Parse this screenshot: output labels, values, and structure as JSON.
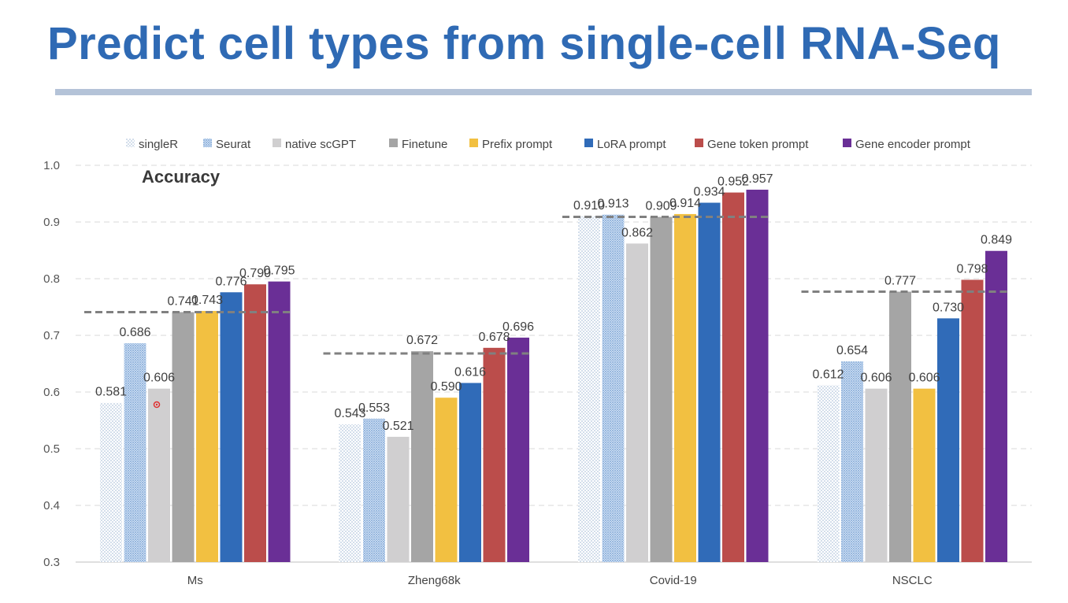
{
  "slide": {
    "title": "Predict cell types from single-cell RNA-Seq"
  },
  "chart_data": {
    "type": "bar",
    "annotation": "Accuracy",
    "categories": [
      "Ms",
      "Zheng68k",
      "Covid-19",
      "NSCLC"
    ],
    "ylim": [
      0.3,
      1.0
    ],
    "yticks": [
      "0.3",
      "0.4",
      "0.5",
      "0.6",
      "0.7",
      "0.8",
      "0.9",
      "1.0"
    ],
    "grid": true,
    "legend_position": "top",
    "series": [
      {
        "name": "singleR",
        "color": "#d6e2ef",
        "pattern": "sparse-dots",
        "values": [
          0.581,
          0.543,
          0.91,
          0.612
        ],
        "labels": [
          "0.581",
          "0.543",
          "0.910",
          "0.612"
        ]
      },
      {
        "name": "Seurat",
        "color": "#9dbde3",
        "pattern": "dense-dots",
        "values": [
          0.686,
          0.553,
          0.913,
          0.654
        ],
        "labels": [
          "0.686",
          "0.553",
          "0.913",
          "0.654"
        ]
      },
      {
        "name": "native scGPT",
        "color": "#d0cfd0",
        "values": [
          0.606,
          0.521,
          0.862,
          0.606
        ],
        "labels": [
          "0.606",
          "0.521",
          "0.862",
          "0.606"
        ]
      },
      {
        "name": "Finetune",
        "color": "#a5a5a5",
        "values": [
          0.741,
          0.672,
          0.909,
          0.777
        ],
        "labels": [
          "0.741",
          "0.672",
          "0.909",
          "0.777"
        ]
      },
      {
        "name": "Prefix prompt",
        "color": "#f2c041",
        "values": [
          0.743,
          0.59,
          0.914,
          0.606
        ],
        "labels": [
          "0.743",
          "0.590",
          "0.914",
          "0.606"
        ]
      },
      {
        "name": "LoRA prompt",
        "color": "#306bb8",
        "values": [
          0.776,
          0.616,
          0.934,
          0.73
        ],
        "labels": [
          "0.776",
          "0.616",
          "0.934",
          "0.730"
        ]
      },
      {
        "name": "Gene token prompt",
        "color": "#bb4d4b",
        "values": [
          0.79,
          0.678,
          0.952,
          0.798
        ],
        "labels": [
          "0.790",
          "0.678",
          "0.952",
          "0.798"
        ]
      },
      {
        "name": "Gene encoder prompt",
        "color": "#6a2f96",
        "values": [
          0.795,
          0.696,
          0.957,
          0.849
        ],
        "labels": [
          "0.795",
          "0.696",
          "0.957",
          "0.849"
        ]
      }
    ],
    "reference_lines": [
      {
        "category": "Ms",
        "value": 0.741
      },
      {
        "category": "Zheng68k",
        "value": 0.668
      },
      {
        "category": "Covid-19",
        "value": 0.909
      },
      {
        "category": "NSCLC",
        "value": 0.777
      }
    ],
    "reference_line_color": "#808080"
  }
}
